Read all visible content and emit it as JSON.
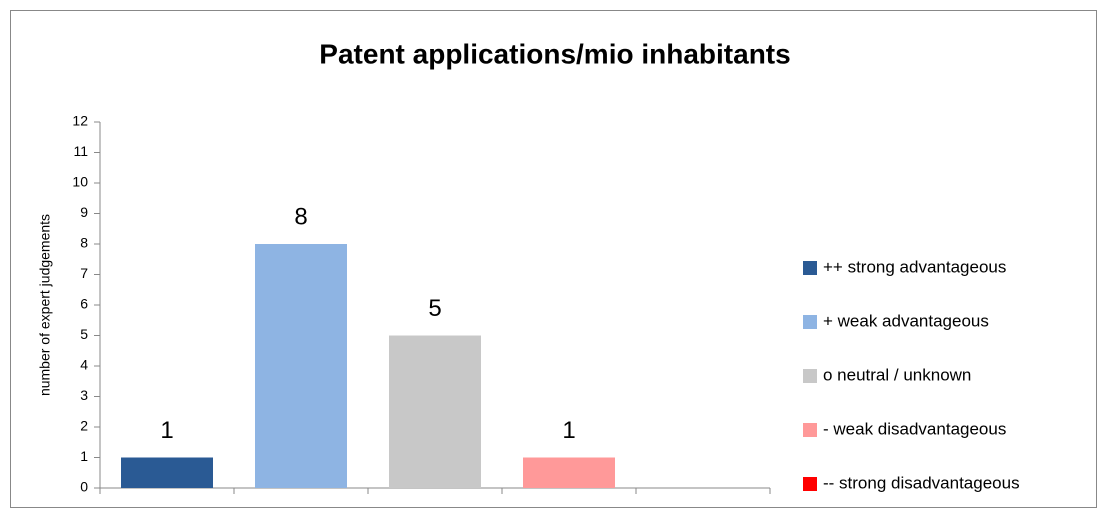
{
  "chart_data": {
    "type": "bar",
    "title": "Patent applications/mio inhabitants",
    "ylabel": "number of expert judgements",
    "series": [
      {
        "name": "++ strong advantageous",
        "color": "#2a5a94",
        "values": [
          1
        ]
      },
      {
        "name": "+ weak advantageous",
        "color": "#8eb4e3",
        "values": [
          8
        ]
      },
      {
        "name": "o neutral / unknown",
        "color": "#c8c8c8",
        "values": [
          5
        ]
      },
      {
        "name": "- weak disadvantageous",
        "color": "#ff9999",
        "values": [
          1
        ]
      },
      {
        "name": "-- strong disadvantageous",
        "color": "#ff0000",
        "values": [
          0
        ]
      }
    ],
    "ylim": [
      0,
      12
    ],
    "yticks": [
      0,
      1,
      2,
      3,
      4,
      5,
      6,
      7,
      8,
      9,
      10,
      11,
      12
    ],
    "grid": false,
    "legend": "right"
  }
}
